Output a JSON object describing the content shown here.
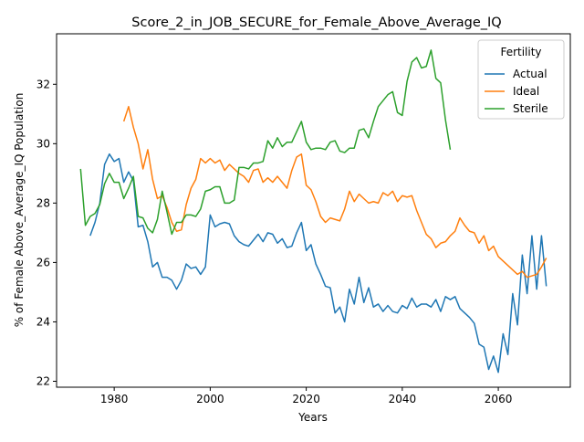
{
  "chart_data": {
    "type": "line",
    "title": "Score_2_in_JOB_SECURE_for_Female_Above_Average_IQ",
    "xlabel": "Years",
    "ylabel": "% of Female Above_Average_IQ Population",
    "xlim": [
      1968,
      2075
    ],
    "ylim": [
      21.8,
      33.7
    ],
    "xticks": [
      1980,
      2000,
      2020,
      2040,
      2060
    ],
    "yticks": [
      22,
      24,
      26,
      28,
      30,
      32
    ],
    "grid": false,
    "legend": {
      "title": "Fertility",
      "placement": "top-right"
    },
    "series": [
      {
        "name": "Actual",
        "color": "#1f77b4",
        "x": [
          1975,
          1976,
          1977,
          1978,
          1979,
          1980,
          1981,
          1982,
          1983,
          1984,
          1985,
          1986,
          1987,
          1988,
          1989,
          1990,
          1991,
          1992,
          1993,
          1994,
          1995,
          1996,
          1997,
          1998,
          1999,
          2000,
          2001,
          2002,
          2003,
          2004,
          2005,
          2006,
          2007,
          2008,
          2009,
          2010,
          2011,
          2012,
          2013,
          2014,
          2015,
          2016,
          2017,
          2018,
          2019,
          2020,
          2021,
          2022,
          2023,
          2024,
          2025,
          2026,
          2027,
          2028,
          2029,
          2030,
          2031,
          2032,
          2033,
          2034,
          2035,
          2036,
          2037,
          2038,
          2039,
          2040,
          2041,
          2042,
          2043,
          2044,
          2045,
          2046,
          2047,
          2048,
          2049,
          2050,
          2051,
          2052,
          2053,
          2054,
          2055,
          2056,
          2057,
          2058,
          2059,
          2060,
          2061,
          2062,
          2063,
          2064,
          2065,
          2066,
          2067,
          2068,
          2069,
          2070
        ],
        "values": [
          26.9,
          27.35,
          28.0,
          29.3,
          29.65,
          29.4,
          29.5,
          28.7,
          29.05,
          28.75,
          27.2,
          27.25,
          26.7,
          25.85,
          26.0,
          25.5,
          25.5,
          25.4,
          25.1,
          25.4,
          25.95,
          25.8,
          25.85,
          25.6,
          25.85,
          27.6,
          27.2,
          27.3,
          27.35,
          27.3,
          26.9,
          26.7,
          26.6,
          26.55,
          26.75,
          26.95,
          26.7,
          27.0,
          26.95,
          26.65,
          26.8,
          26.5,
          26.55,
          27.0,
          27.35,
          26.4,
          26.6,
          25.95,
          25.6,
          25.2,
          25.15,
          24.3,
          24.5,
          24.0,
          25.1,
          24.6,
          25.5,
          24.65,
          25.15,
          24.5,
          24.6,
          24.35,
          24.55,
          24.35,
          24.3,
          24.55,
          24.45,
          24.8,
          24.5,
          24.6,
          24.6,
          24.5,
          24.75,
          24.35,
          24.85,
          24.75,
          24.85,
          24.45,
          24.3,
          24.15,
          23.95,
          23.25,
          23.15,
          22.4,
          22.85,
          22.3,
          23.6,
          22.9,
          24.95,
          23.9,
          26.25,
          24.95,
          26.9,
          25.1,
          26.9,
          25.2
        ]
      },
      {
        "name": "Ideal",
        "color": "#ff7f0e",
        "x": [
          1982,
          1983,
          1984,
          1985,
          1986,
          1987,
          1988,
          1989,
          1990,
          1991,
          1992,
          1993,
          1994,
          1995,
          1996,
          1997,
          1998,
          1999,
          2000,
          2001,
          2002,
          2003,
          2004,
          2005,
          2006,
          2007,
          2008,
          2009,
          2010,
          2011,
          2012,
          2013,
          2014,
          2015,
          2016,
          2017,
          2018,
          2019,
          2020,
          2021,
          2022,
          2023,
          2024,
          2025,
          2026,
          2027,
          2028,
          2029,
          2030,
          2031,
          2032,
          2033,
          2034,
          2035,
          2036,
          2037,
          2038,
          2039,
          2040,
          2041,
          2042,
          2043,
          2044,
          2045,
          2046,
          2047,
          2048,
          2049,
          2050,
          2051,
          2052,
          2053,
          2054,
          2055,
          2056,
          2057,
          2058,
          2059,
          2060,
          2061,
          2062,
          2063,
          2064,
          2065,
          2066,
          2067,
          2068,
          2069,
          2070
        ],
        "values": [
          30.75,
          31.25,
          30.55,
          30.0,
          29.15,
          29.8,
          28.8,
          28.15,
          28.25,
          27.85,
          27.35,
          27.05,
          27.1,
          27.95,
          28.5,
          28.8,
          29.5,
          29.35,
          29.5,
          29.35,
          29.45,
          29.1,
          29.3,
          29.15,
          29.0,
          28.9,
          28.7,
          29.1,
          29.15,
          28.7,
          28.85,
          28.7,
          28.9,
          28.7,
          28.5,
          29.1,
          29.55,
          29.65,
          28.6,
          28.45,
          28.05,
          27.55,
          27.35,
          27.5,
          27.45,
          27.4,
          27.8,
          28.4,
          28.05,
          28.3,
          28.15,
          28.0,
          28.05,
          28.0,
          28.35,
          28.25,
          28.4,
          28.05,
          28.25,
          28.2,
          28.25,
          27.75,
          27.35,
          26.95,
          26.8,
          26.5,
          26.65,
          26.7,
          26.9,
          27.05,
          27.5,
          27.25,
          27.05,
          27.0,
          26.65,
          26.9,
          26.4,
          26.55,
          26.2,
          26.05,
          25.9,
          25.75,
          25.6,
          25.7,
          25.5,
          25.55,
          25.6,
          25.85,
          26.15
        ]
      },
      {
        "name": "Sterile",
        "color": "#2ca02c",
        "x": [
          1973,
          1974,
          1975,
          1976,
          1977,
          1978,
          1979,
          1980,
          1981,
          1982,
          1983,
          1984,
          1985,
          1986,
          1987,
          1988,
          1989,
          1990,
          1991,
          1992,
          1993,
          1994,
          1995,
          1996,
          1997,
          1998,
          1999,
          2000,
          2001,
          2002,
          2003,
          2004,
          2005,
          2006,
          2007,
          2008,
          2009,
          2010,
          2011,
          2012,
          2013,
          2014,
          2015,
          2016,
          2017,
          2018,
          2019,
          2020,
          2021,
          2022,
          2023,
          2024,
          2025,
          2026,
          2027,
          2028,
          2029,
          2030,
          2031,
          2032,
          2033,
          2034,
          2035,
          2036,
          2037,
          2038,
          2039,
          2040,
          2041,
          2042,
          2043,
          2044,
          2045,
          2046,
          2047,
          2048,
          2049,
          2050
        ],
        "values": [
          29.15,
          27.25,
          27.55,
          27.65,
          27.95,
          28.65,
          29.0,
          28.7,
          28.7,
          28.15,
          28.5,
          28.9,
          27.55,
          27.5,
          27.15,
          27.0,
          27.45,
          28.4,
          27.7,
          26.95,
          27.35,
          27.35,
          27.6,
          27.6,
          27.55,
          27.8,
          28.4,
          28.45,
          28.55,
          28.55,
          28.0,
          28.0,
          28.1,
          29.2,
          29.2,
          29.15,
          29.35,
          29.35,
          29.4,
          30.1,
          29.85,
          30.2,
          29.9,
          30.05,
          30.05,
          30.4,
          30.75,
          30.05,
          29.8,
          29.85,
          29.85,
          29.8,
          30.05,
          30.1,
          29.75,
          29.7,
          29.85,
          29.85,
          30.45,
          30.5,
          30.2,
          30.75,
          31.25,
          31.45,
          31.65,
          31.75,
          31.05,
          30.95,
          32.1,
          32.75,
          32.9,
          32.55,
          32.6,
          33.15,
          32.2,
          32.05,
          30.8,
          29.8
        ]
      }
    ]
  }
}
